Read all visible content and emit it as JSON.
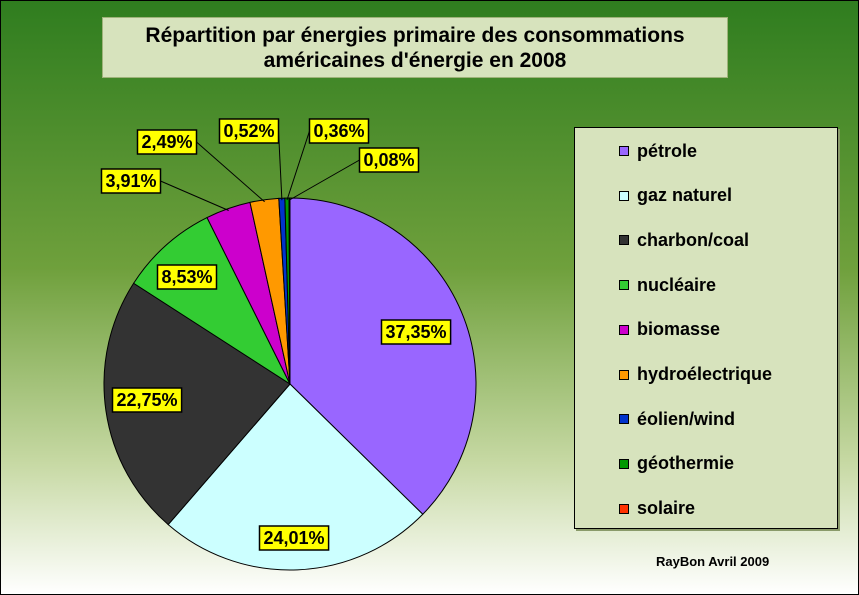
{
  "chart_data": {
    "type": "pie",
    "title_lines": [
      "Répartition par énergies primaire des consommations",
      "américaines d'énergie en 2008"
    ],
    "categories": [
      "pétrole",
      "gaz naturel",
      "charbon/coal",
      "nucléaire",
      "biomasse",
      "hydroélectrique",
      "éolien/wind",
      "géothermie",
      "solaire"
    ],
    "values": [
      37.35,
      24.01,
      22.75,
      8.53,
      3.91,
      2.49,
      0.52,
      0.36,
      0.08
    ],
    "data_labels": [
      "37,35%",
      "24,01%",
      "22,75%",
      "8,53%",
      "3,91%",
      "2,49%",
      "0,52%",
      "0,36%",
      "0,08%"
    ],
    "colors": [
      "#9966ff",
      "#ccffff",
      "#333333",
      "#33cc33",
      "#cc00cc",
      "#ff9900",
      "#0033cc",
      "#009900",
      "#ff3300"
    ],
    "label_fill": "#ffff00",
    "legend_position": "right",
    "credit": "RayBon Avril 2009"
  }
}
